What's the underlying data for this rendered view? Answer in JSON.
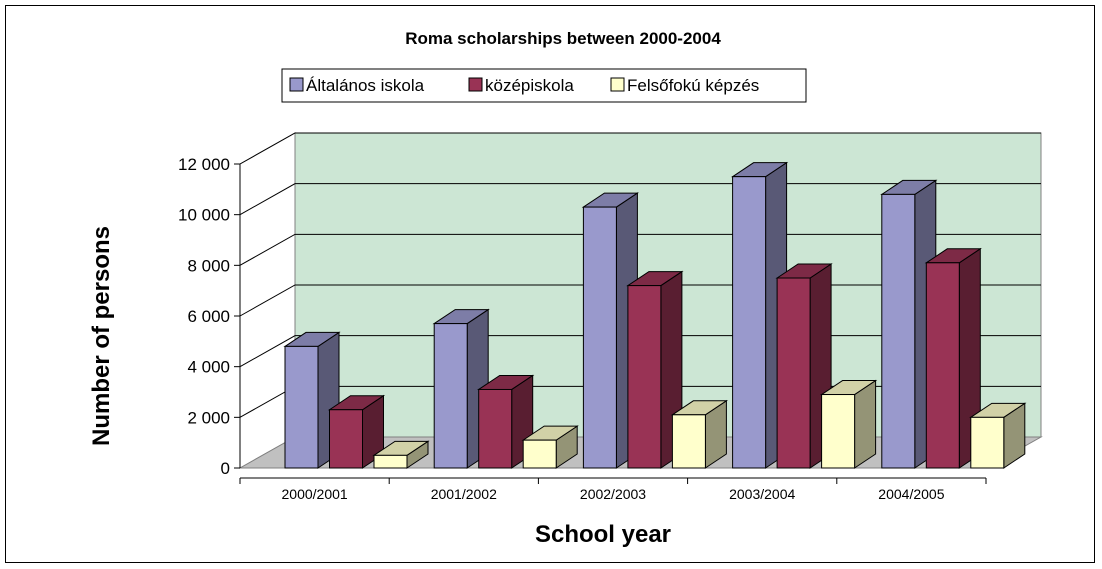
{
  "chart_data": {
    "type": "bar",
    "title": "Roma scholarships between 2000-2004",
    "xlabel": "School year",
    "ylabel": "Number of persons",
    "categories": [
      "2000/2001",
      "2001/2002",
      "2002/2003",
      "2003/2004",
      "2004/2005"
    ],
    "series": [
      {
        "name": "Általános iskola",
        "color": "#9999CC",
        "values": [
          4800,
          5700,
          10300,
          11500,
          10800
        ]
      },
      {
        "name": "középiskola",
        "color": "#993355",
        "values": [
          2300,
          3100,
          7200,
          7500,
          8100
        ]
      },
      {
        "name": "Felsőfokú képzés",
        "color": "#FFFFCC",
        "values": [
          500,
          1100,
          2100,
          2900,
          2000
        ]
      }
    ],
    "ylim": [
      0,
      12000
    ],
    "yticks": [
      "0",
      "2 000",
      "4 000",
      "6 000",
      "8 000",
      "10 000",
      "12 000"
    ],
    "grid": true,
    "legend_position": "top",
    "plot_background": "#CCE6D4"
  }
}
